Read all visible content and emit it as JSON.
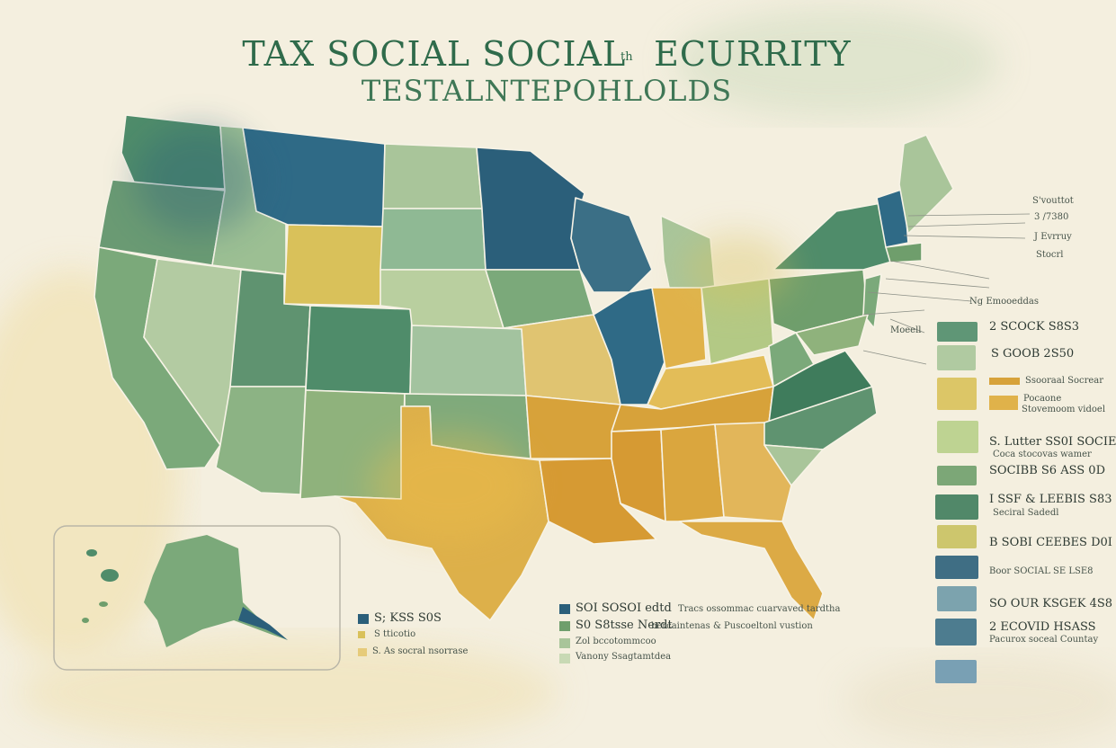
{
  "title": {
    "line1": "TAX SOCIAL SOCIAL   ECURRITY",
    "line1_small": "th",
    "line2": "TESTALNTEPOHLOLDS"
  },
  "colors": {
    "background": "#f4efdf",
    "dark_blue": "#2b5f7a",
    "teal_green": "#3f7c5c",
    "mid_green": "#6f9e6c",
    "light_green": "#a9c59a",
    "pale_green": "#c8d9b4",
    "yellow": "#d9c15a",
    "gold": "#d7a23a",
    "border": "#f7f3e6"
  },
  "right_notes": [
    "S'vouttot",
    "3 /7380",
    "J Evrruy",
    "Stocrl"
  ],
  "mid_notes": [
    "Ng Emooeddas",
    "Moeell"
  ],
  "legend_right": [
    {
      "color": "#4f8c6a",
      "text": "2 SCOCK S8S3",
      "sub": ""
    },
    {
      "color": "#a9c59a",
      "text": "S GOOB 2S50",
      "sub": ""
    },
    {
      "color": "#d9c15a",
      "text": "",
      "sub": ""
    },
    {
      "color": "#b8cf8a",
      "text": "S. Lutter SS0I SOCIE",
      "sub": "Coca stocovas wamer"
    },
    {
      "color": "#6f9e6c",
      "text": "SOCIBB S6 ASS 0D",
      "sub": ""
    },
    {
      "color": "#3f7c5c",
      "text": "I SSF & LEEBIS S83",
      "sub": "Seciral Sadedl"
    },
    {
      "color": "#c9c160",
      "text": "B SOBI CEEBES D0I",
      "sub": ""
    },
    {
      "color": "#2b5f7a",
      "text": "",
      "sub": "Boor SOCIAL SE LSE8"
    },
    {
      "color": "#6f9aa8",
      "text": "SO OUR KSGEK 4S8",
      "sub": ""
    },
    {
      "color": "#3b6f86",
      "text": "2 ECOVID HSASS",
      "sub": "Pacurox soceal Countay"
    },
    {
      "color": "#6b98b0",
      "text": "",
      "sub": ""
    }
  ],
  "legend_mid": [
    {
      "color": "#d7a23a",
      "label": "Ssooraal Socrear"
    },
    {
      "color": "#e0b24a",
      "label": "Pocaone",
      "sub": "Stovemoom vidoel"
    }
  ],
  "legend_bottom_left": [
    {
      "color": "#2b5f7a",
      "label": "S; KSS S0S"
    },
    {
      "color": "#d9c15a",
      "label": "S tticotio"
    },
    {
      "color": "#e6cb7a",
      "label": "S. As socral nsorrase"
    }
  ],
  "legend_bottom_mid": [
    {
      "color": "#2b5f7a",
      "label": "SOI SOSOI edtd",
      "sub": "Tracs ossommac cuarvaved tardtha"
    },
    {
      "color": "#6f9e6c",
      "label": "S0 S8tsse Nerdt",
      "sub": "bercaintenas & Puscoeltonl vustion"
    },
    {
      "color": "#a9c59a",
      "label": "Zol bccotommcoo"
    },
    {
      "color": "#c8d9b4",
      "label": "Vanony Ssagtamtdea"
    }
  ]
}
